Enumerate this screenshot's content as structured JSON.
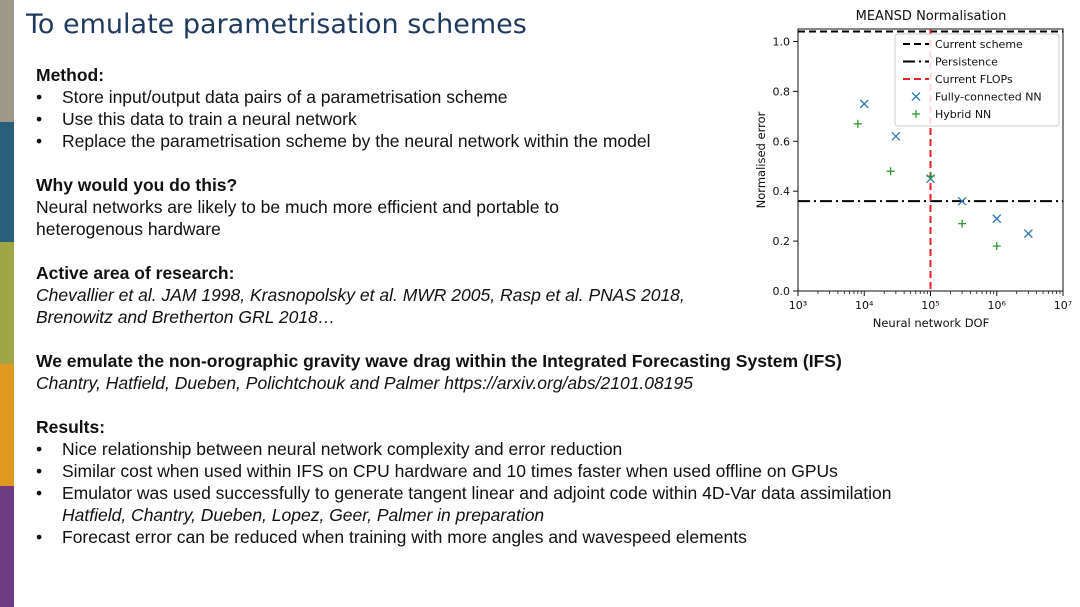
{
  "colors": {
    "band1": "#9e9888",
    "band2": "#2a5f7b",
    "band3": "#9ea646",
    "band4": "#e0991f",
    "band5": "#6e3c83",
    "title": "#1f3a5f"
  },
  "title": "To emulate parametrisation schemes",
  "method": {
    "heading": "Method:",
    "bullets": [
      "Store input/output data pairs of a parametrisation scheme",
      "Use this data to train a neural network",
      "Replace the parametrisation scheme by the neural network within the model"
    ]
  },
  "why": {
    "heading": "Why would you do this?",
    "line1": "Neural networks are likely to be much more efficient and portable to",
    "line2": "heterogenous hardware"
  },
  "research": {
    "heading": "Active area of research:",
    "line1": "Chevallier et al. JAM 1998, Krasnopolsky et al. MWR 2005, Rasp et al. PNAS 2018,",
    "line2": "Brenowitz and Bretherton GRL 2018…"
  },
  "emulate": {
    "heading": "We emulate the non-orographic gravity wave drag within the Integrated Forecasting System (IFS)",
    "citation": "Chantry, Hatfield, Dueben,  Polichtchouk and Palmer https://arxiv.org/abs/2101.08195"
  },
  "results": {
    "heading": "Results:",
    "b1": "Nice relationship between neural network complexity and error reduction",
    "b2": "Similar cost when used within IFS on CPU hardware and 10 times faster when used offline on GPUs",
    "b3": "Emulator was used successfully to generate tangent linear and adjoint code within 4D-Var data assimilation",
    "b3_sub": "Hatfield, Chantry, Dueben, Lopez, Geer, Palmer in preparation",
    "b4": "Forecast error can be reduced when training with more angles and wavespeed elements"
  },
  "chart_data": {
    "type": "scatter",
    "title": "MEANSD Normalisation",
    "xlabel": "Neural network DOF",
    "ylabel": "Normalised error",
    "xscale": "log",
    "xlim": [
      1000,
      10000000
    ],
    "ylim": [
      0.0,
      1.05
    ],
    "xtick_values": [
      1000,
      10000,
      100000,
      1000000,
      10000000
    ],
    "xtick_labels": [
      "10³",
      "10⁴",
      "10⁵",
      "10⁶",
      "10⁷"
    ],
    "yticks": [
      "0.0",
      "0.2",
      "0.4",
      "0.6",
      "0.8",
      "1.0"
    ],
    "legend_position": "top-right",
    "series": [
      {
        "name": "Current scheme",
        "kind": "hline",
        "y": 1.04,
        "color": "#000000",
        "style": "dashed"
      },
      {
        "name": "Persistence",
        "kind": "hline",
        "y": 0.36,
        "color": "#000000",
        "style": "dashdot"
      },
      {
        "name": "Current FLOPs",
        "kind": "vline",
        "x": 100000,
        "color": "#e8202a",
        "style": "dashed"
      },
      {
        "name": "Fully-connected NN",
        "kind": "points",
        "marker": "x",
        "color": "#2f7ab8",
        "x": [
          10000,
          30000,
          100000,
          300000,
          1000000,
          3000000
        ],
        "y": [
          0.75,
          0.62,
          0.45,
          0.36,
          0.29,
          0.23
        ]
      },
      {
        "name": "Hybrid NN",
        "kind": "points",
        "marker": "+",
        "color": "#2e9a2e",
        "x": [
          8000,
          25000,
          100000,
          300000,
          1000000
        ],
        "y": [
          0.67,
          0.48,
          0.46,
          0.27,
          0.18
        ]
      }
    ]
  }
}
